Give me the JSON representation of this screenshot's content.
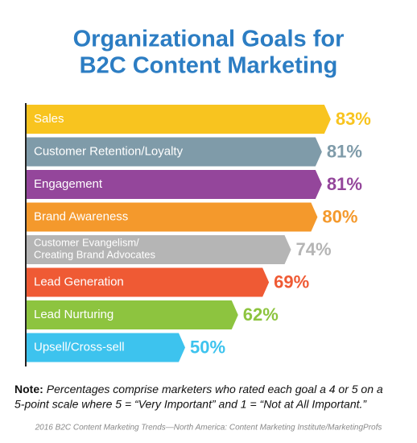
{
  "chart_data": {
    "type": "bar",
    "orientation": "horizontal",
    "title": [
      "Organizational Goals for",
      "B2C Content Marketing"
    ],
    "categories": [
      "Sales",
      "Customer Retention/Loyalty",
      "Engagement",
      "Brand Awareness",
      "Customer Evangelism/\nCreating Brand Advocates",
      "Lead Generation",
      "Lead Nurturing",
      "Upsell/Cross-sell"
    ],
    "values": [
      83,
      81,
      81,
      80,
      74,
      69,
      62,
      50
    ],
    "value_labels": [
      "83%",
      "81%",
      "81%",
      "80%",
      "74%",
      "69%",
      "62%",
      "50%"
    ],
    "colors": [
      "#f8c41f",
      "#7f9ba9",
      "#94469b",
      "#f4992c",
      "#b5b5b5",
      "#ef5a34",
      "#8dc43f",
      "#3dc3ee"
    ],
    "note_label": "Note:",
    "note": [
      "Percentages comprise marketers who rated each goal a 4 or 5 on a",
      "5-point scale where 5 = “Very Important” and 1 = “Not at All Important.”"
    ],
    "source": "2016 B2C Content Marketing Trends—North America: Content Marketing Institute/MarketingProfs"
  }
}
